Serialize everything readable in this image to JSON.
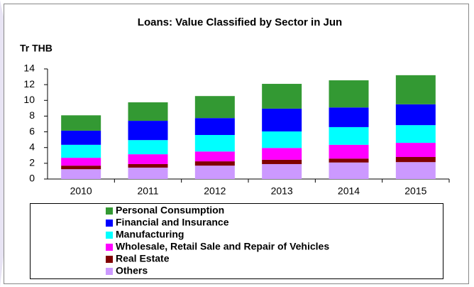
{
  "chart_data": {
    "type": "stacked_bar",
    "title": "Loans: Value Classified by Sector in Jun",
    "y_label": "Tr THB",
    "categories": [
      "2010",
      "2011",
      "2012",
      "2013",
      "2014",
      "2015"
    ],
    "series": [
      {
        "name": "Others",
        "color": "#cc99ff",
        "values": [
          1.25,
          1.45,
          1.7,
          1.9,
          2.1,
          2.15
        ]
      },
      {
        "name": "Real Estate",
        "color": "#800000",
        "values": [
          0.45,
          0.45,
          0.55,
          0.55,
          0.5,
          0.65
        ]
      },
      {
        "name": "Wholesale, Retail Sale and Repair of Vehicles",
        "color": "#ff00ff",
        "values": [
          1.0,
          1.25,
          1.25,
          1.5,
          1.75,
          1.8
        ]
      },
      {
        "name": "Manufacturing",
        "color": "#00ffff",
        "values": [
          1.65,
          1.8,
          2.1,
          2.1,
          2.25,
          2.25
        ]
      },
      {
        "name": "Financial and Insurance",
        "color": "#0000ff",
        "values": [
          1.8,
          2.45,
          2.15,
          2.9,
          2.5,
          2.65
        ]
      },
      {
        "name": "Personal Consumption",
        "color": "#339933",
        "values": [
          1.95,
          2.35,
          2.8,
          3.15,
          3.45,
          3.7
        ]
      }
    ],
    "ylim": [
      0,
      14
    ],
    "yticks": [
      0,
      2,
      4,
      6,
      8,
      10,
      12,
      14
    ]
  }
}
